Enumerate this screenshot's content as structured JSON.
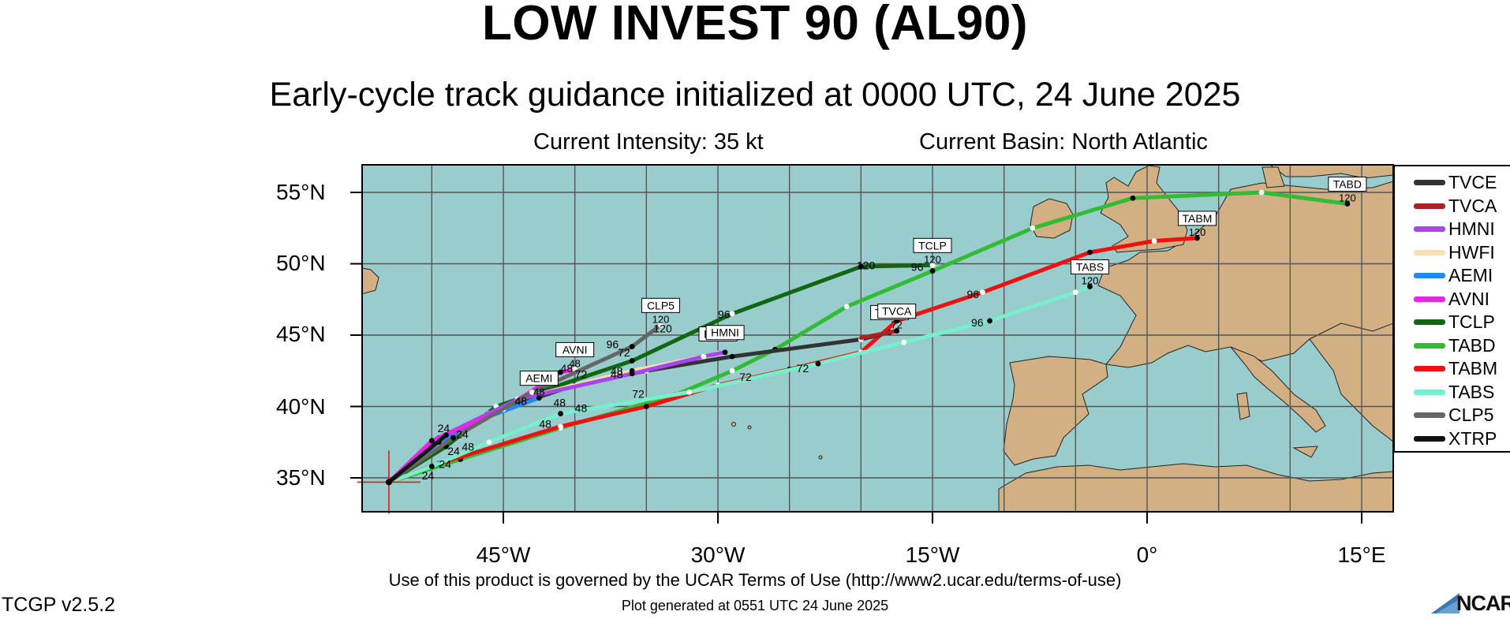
{
  "title": "LOW INVEST 90 (AL90)",
  "subtitle": "Early-cycle track guidance initialized at 0000 UTC, 24 June 2025",
  "current_intensity": "Current Intensity: 35 kt",
  "current_basin": "Current Basin: North Atlantic",
  "axes": {
    "lat_labels": [
      "55°N",
      "50°N",
      "45°N",
      "40°N",
      "35°N"
    ],
    "lon_labels": [
      "45°W",
      "30°W",
      "15°W",
      "0°",
      "15°E"
    ]
  },
  "colors": {
    "ocean": "#99cccc",
    "land": "#d2b084",
    "grid": "#555555"
  },
  "legend": [
    {
      "name": "TVCE",
      "color": "#333333"
    },
    {
      "name": "TVCA",
      "color": "#aa2222"
    },
    {
      "name": "HMNI",
      "color": "#aa44ee"
    },
    {
      "name": "HWFI",
      "color": "#fadeb0"
    },
    {
      "name": "AEMI",
      "color": "#2288ee"
    },
    {
      "name": "AVNI",
      "color": "#ee22ee"
    },
    {
      "name": "TCLP",
      "color": "#116611"
    },
    {
      "name": "TABD",
      "color": "#33bb33"
    },
    {
      "name": "TABM",
      "color": "#ee1111"
    },
    {
      "name": "TABS",
      "color": "#77eecc"
    },
    {
      "name": "CLP5",
      "color": "#666666"
    },
    {
      "name": "XTRP",
      "color": "#111111"
    }
  ],
  "chart_data": {
    "type": "map",
    "initial_position": {
      "lat": 34.7,
      "lon": -53.0
    },
    "tracks": [
      {
        "name": "TCLP",
        "color": "#116611",
        "points": [
          [
            34.7,
            -53.0
          ],
          [
            37.2,
            -49.0
          ],
          [
            40.0,
            -45.5
          ],
          [
            43.2,
            -36.0
          ],
          [
            46.5,
            -29.0
          ],
          [
            49.8,
            -20.0
          ],
          [
            49.9,
            -15.0
          ]
        ],
        "end_label": "TCLP",
        "end_hour": "120"
      },
      {
        "name": "TABD",
        "color": "#33bb33",
        "points": [
          [
            34.7,
            -53.0
          ],
          [
            36.3,
            -48.0
          ],
          [
            38.5,
            -41.0
          ],
          [
            40.8,
            -33.0
          ],
          [
            42.5,
            -29.0
          ],
          [
            44.0,
            -26.0
          ],
          [
            47.0,
            -21.0
          ],
          [
            49.5,
            -15.0
          ],
          [
            52.5,
            -8.0
          ],
          [
            54.6,
            -1.0
          ],
          [
            55.0,
            8.0
          ],
          [
            54.2,
            14.0
          ]
        ],
        "end_label": "TABD",
        "end_hour": "120"
      },
      {
        "name": "TABM",
        "color": "#ee1111",
        "points": [
          [
            34.7,
            -53.0
          ],
          [
            36.0,
            -49.5
          ],
          [
            38.6,
            -41.0
          ],
          [
            40.0,
            -35.0
          ],
          [
            41.5,
            -30.0
          ],
          [
            42.6,
            -25.0
          ],
          [
            43.8,
            -20.0
          ],
          [
            46.0,
            -17.5
          ],
          [
            48.0,
            -11.5
          ],
          [
            50.8,
            -4.0
          ],
          [
            51.6,
            0.5
          ],
          [
            51.8,
            3.5
          ]
        ],
        "end_label": "TABM",
        "end_hour": "120"
      },
      {
        "name": "TABS",
        "color": "#77eecc",
        "points": [
          [
            34.7,
            -53.0
          ],
          [
            35.8,
            -50.0
          ],
          [
            37.5,
            -46.0
          ],
          [
            39.5,
            -41.0
          ],
          [
            41.0,
            -32.0
          ],
          [
            43.0,
            -23.0
          ],
          [
            44.5,
            -17.0
          ],
          [
            46.0,
            -11.0
          ],
          [
            48.0,
            -5.0
          ],
          [
            48.4,
            -4.0
          ]
        ],
        "end_label": "TABS",
        "end_hour": "120"
      },
      {
        "name": "TVCE",
        "color": "#333333",
        "points": [
          [
            34.7,
            -53.0
          ],
          [
            37.5,
            -49.5
          ],
          [
            39.5,
            -46.0
          ],
          [
            41.5,
            -40.0
          ],
          [
            42.5,
            -35.0
          ],
          [
            43.5,
            -29.0
          ],
          [
            44.7,
            -20.0
          ],
          [
            45.2,
            -18.0
          ]
        ],
        "end_label": "TVCE",
        "end_hour": ""
      },
      {
        "name": "TVCA",
        "color": "#aa2222",
        "points": [
          [
            44.8,
            -20.0
          ],
          [
            45.3,
            -17.5
          ]
        ],
        "end_label": "TVCA",
        "end_hour": "72"
      },
      {
        "name": "HWFI",
        "color": "#fadeb0",
        "points": [
          [
            34.7,
            -53.0
          ],
          [
            37.8,
            -49.0
          ],
          [
            40.5,
            -44.0
          ],
          [
            42.5,
            -36.0
          ],
          [
            43.7,
            -30.0
          ]
        ],
        "end_label": "HWFI",
        "end_hour": ""
      },
      {
        "name": "HMNI",
        "color": "#aa44ee",
        "points": [
          [
            34.7,
            -53.0
          ],
          [
            37.8,
            -49.5
          ],
          [
            40.5,
            -44.0
          ],
          [
            42.3,
            -36.0
          ],
          [
            43.5,
            -31.0
          ],
          [
            43.8,
            -29.5
          ]
        ],
        "end_label": "HMNI",
        "end_hour": ""
      },
      {
        "name": "AEMI",
        "color": "#2288ee",
        "points": [
          [
            34.7,
            -53.0
          ],
          [
            37.5,
            -49.5
          ],
          [
            39.3,
            -46.0
          ],
          [
            40.6,
            -42.5
          ]
        ],
        "end_label": "AEMI",
        "end_hour": "48"
      },
      {
        "name": "AVNI",
        "color": "#ee22ee",
        "points": [
          [
            34.7,
            -53.0
          ],
          [
            37.6,
            -50.0
          ],
          [
            39.8,
            -45.0
          ],
          [
            42.4,
            -41.0
          ],
          [
            42.6,
            -40.0
          ]
        ],
        "end_label": "AVNI",
        "end_hour": "48"
      },
      {
        "name": "CLP5",
        "color": "#666666",
        "points": [
          [
            34.7,
            -53.0
          ],
          [
            37.8,
            -48.5
          ],
          [
            41.0,
            -43.0
          ],
          [
            44.2,
            -36.0
          ],
          [
            45.7,
            -34.0
          ]
        ],
        "end_label": "CLP5",
        "end_hour": "120"
      },
      {
        "name": "XTRP",
        "color": "#111111",
        "points": [
          [
            34.7,
            -53.0
          ],
          [
            38.0,
            -49.0
          ]
        ],
        "end_label": "",
        "end_hour": ""
      }
    ],
    "hour_labels": [
      {
        "text": "24",
        "lat": 34.9,
        "lon": -50.7
      },
      {
        "text": "24",
        "lat": 35.7,
        "lon": -49.5
      },
      {
        "text": "24",
        "lat": 36.6,
        "lon": -48.9
      },
      {
        "text": "24",
        "lat": 38.2,
        "lon": -49.6
      },
      {
        "text": "24",
        "lat": 37.8,
        "lon": -48.3
      },
      {
        "text": "48",
        "lat": 36.9,
        "lon": -47.9
      },
      {
        "text": "48",
        "lat": 38.5,
        "lon": -42.5
      },
      {
        "text": "48",
        "lat": 39.6,
        "lon": -40.0
      },
      {
        "text": "48",
        "lat": 40.0,
        "lon": -41.5
      },
      {
        "text": "48",
        "lat": 40.1,
        "lon": -44.2
      },
      {
        "text": "48",
        "lat": 42.2,
        "lon": -37.5
      },
      {
        "text": "48",
        "lat": 42.0,
        "lon": -37.5
      },
      {
        "text": "48",
        "lat": 42.4,
        "lon": -41.0
      },
      {
        "text": "72",
        "lat": 40.6,
        "lon": -36.0
      },
      {
        "text": "72",
        "lat": 41.8,
        "lon": -28.5
      },
      {
        "text": "72",
        "lat": 42.4,
        "lon": -24.5
      },
      {
        "text": "72",
        "lat": 42.0,
        "lon": -40.0
      },
      {
        "text": "72",
        "lat": 43.5,
        "lon": -37.0
      },
      {
        "text": "96",
        "lat": 44.1,
        "lon": -37.8
      },
      {
        "text": "96",
        "lat": 46.2,
        "lon": -30.0
      },
      {
        "text": "96",
        "lat": 49.5,
        "lon": -16.5
      },
      {
        "text": "96",
        "lat": 47.6,
        "lon": -12.6
      },
      {
        "text": "96",
        "lat": 45.6,
        "lon": -12.3
      },
      {
        "text": "120",
        "lat": 45.2,
        "lon": -34.5
      },
      {
        "text": "120",
        "lat": 49.6,
        "lon": -20.3
      }
    ]
  },
  "footer": {
    "terms": "Use of this product is governed by the UCAR Terms of Use (http://www2.ucar.edu/terms-of-use)",
    "version": "TCGP v2.5.2",
    "generated": "Plot generated at 0551 UTC   24 June 2025",
    "logo_text": "NCAR"
  }
}
